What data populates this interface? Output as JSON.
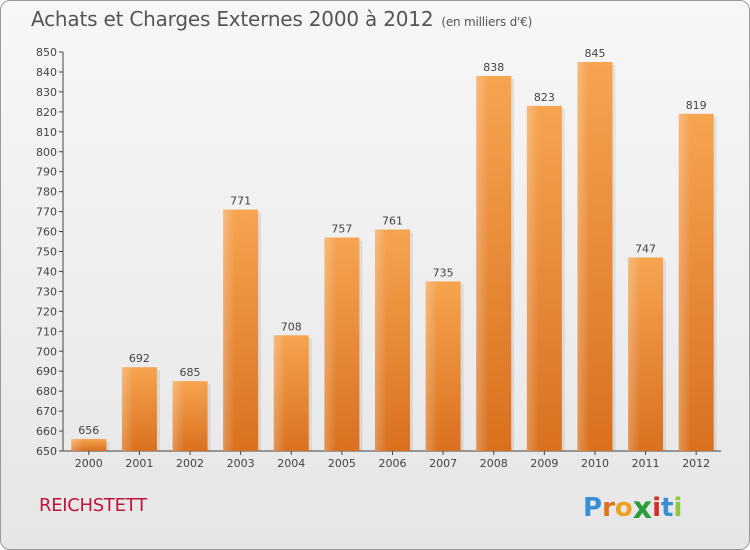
{
  "header": {
    "title": "Achats et Charges Externes 2000 à 2012",
    "unit": "(en milliers d'€)"
  },
  "footer": {
    "city": "REICHSTETT",
    "logo_letters": [
      "P",
      "r",
      "o",
      "x",
      "i",
      "t",
      "i"
    ],
    "logo_colors": [
      "#3a8fd4",
      "#e07020",
      "#f0a020",
      "#2a9d3a",
      "#d0302a",
      "#3a8fd4",
      "#8dc63f"
    ]
  },
  "chart_data": {
    "type": "bar",
    "title": "Achats et Charges Externes 2000 à 2012",
    "xlabel": "",
    "ylabel": "",
    "categories": [
      "2000",
      "2001",
      "2002",
      "2003",
      "2004",
      "2005",
      "2006",
      "2007",
      "2008",
      "2009",
      "2010",
      "2011",
      "2012"
    ],
    "values": [
      656,
      692,
      685,
      771,
      708,
      757,
      761,
      735,
      838,
      823,
      845,
      747,
      819
    ],
    "ylim": [
      650,
      850
    ],
    "ytick_step": 10,
    "grid": false,
    "bar_color_top": "#f6a450",
    "bar_color_bottom": "#d9701e"
  }
}
